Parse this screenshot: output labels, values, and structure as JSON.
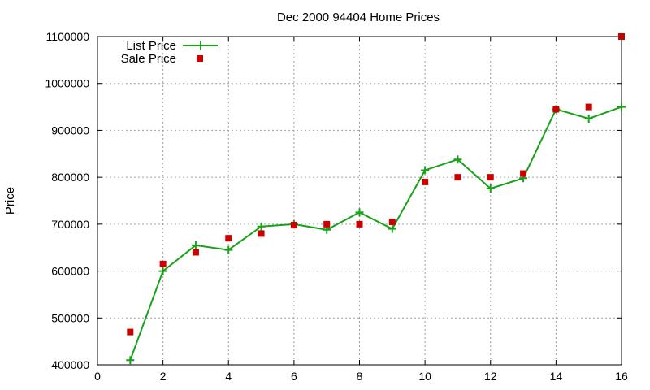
{
  "chart_data": {
    "type": "line",
    "title": "Dec 2000 94404 Home Prices",
    "xlabel": "",
    "ylabel": "Price",
    "xlim": [
      0,
      16
    ],
    "ylim": [
      400000,
      1100000
    ],
    "xticks": [
      0,
      2,
      4,
      6,
      8,
      10,
      12,
      14,
      16
    ],
    "yticks": [
      400000,
      500000,
      600000,
      700000,
      800000,
      900000,
      1000000,
      1100000
    ],
    "x_tick_labels": [
      "0",
      "2",
      "4",
      "6",
      "8",
      "10",
      "12",
      "14",
      "16"
    ],
    "y_tick_labels": [
      "400000",
      "500000",
      "600000",
      "700000",
      "800000",
      "900000",
      "1000000",
      "1100000"
    ],
    "grid": true,
    "legend_position": "top-left",
    "series": [
      {
        "name": "List Price",
        "style": "linespoints",
        "marker": "plus",
        "color": "#1aa11a",
        "x": [
          1,
          2,
          3,
          4,
          5,
          6,
          7,
          8,
          9,
          10,
          11,
          12,
          13,
          14,
          15,
          16
        ],
        "values": [
          410000,
          600000,
          655000,
          645000,
          695000,
          700000,
          688000,
          725000,
          690000,
          815000,
          838000,
          776000,
          798000,
          945000,
          925000,
          950000
        ]
      },
      {
        "name": "Sale Price",
        "style": "points",
        "marker": "square",
        "color": "#cc0000",
        "x": [
          1,
          2,
          3,
          4,
          5,
          6,
          7,
          8,
          9,
          10,
          11,
          12,
          13,
          14,
          15,
          16
        ],
        "values": [
          470000,
          615000,
          640000,
          670000,
          680000,
          698000,
          700000,
          700000,
          705000,
          790000,
          800000,
          800000,
          808000,
          945000,
          950000,
          1100000
        ]
      }
    ]
  }
}
